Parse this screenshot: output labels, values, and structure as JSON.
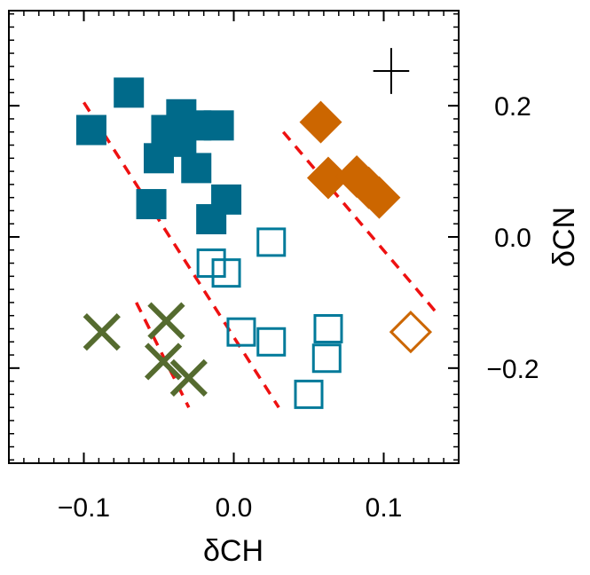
{
  "chart_data": {
    "type": "scatter",
    "xlabel": "δCH",
    "ylabel": "δCN",
    "xlim": [
      -0.15,
      0.15
    ],
    "ylim": [
      -0.345,
      0.345
    ],
    "x_ticks": [
      {
        "value": -0.1,
        "label": "−0.1"
      },
      {
        "value": 0.0,
        "label": "0.0"
      },
      {
        "value": 0.1,
        "label": "0.1"
      }
    ],
    "y_ticks": [
      {
        "value": 0.2,
        "label": "0.2"
      },
      {
        "value": 0.0,
        "label": "0.0"
      },
      {
        "value": -0.2,
        "label": "−0.2"
      }
    ],
    "y_axis_position": "right",
    "grid": false,
    "error_bar": {
      "x": 0.105,
      "y": 0.253,
      "dx": 0.012,
      "dy": 0.035,
      "color": "#000000"
    },
    "series": [
      {
        "marker": "filled-square",
        "color": "#006a8a",
        "points": [
          [
            -0.07,
            0.22
          ],
          [
            -0.095,
            0.163
          ],
          [
            -0.035,
            0.187
          ],
          [
            -0.045,
            0.163
          ],
          [
            -0.035,
            0.145
          ],
          [
            -0.025,
            0.17
          ],
          [
            -0.01,
            0.17
          ],
          [
            -0.05,
            0.12
          ],
          [
            -0.025,
            0.105
          ],
          [
            -0.055,
            0.05
          ],
          [
            -0.005,
            0.057
          ],
          [
            -0.015,
            0.027
          ]
        ]
      },
      {
        "marker": "open-square",
        "color": "#007a9a",
        "points": [
          [
            -0.015,
            -0.04
          ],
          [
            -0.005,
            -0.055
          ],
          [
            0.025,
            -0.008
          ],
          [
            0.005,
            -0.145
          ],
          [
            0.025,
            -0.16
          ],
          [
            0.063,
            -0.14
          ],
          [
            0.062,
            -0.185
          ],
          [
            0.05,
            -0.24
          ]
        ]
      },
      {
        "marker": "filled-diamond",
        "color": "#cc6600",
        "points": [
          [
            0.058,
            0.175
          ],
          [
            0.063,
            0.09
          ],
          [
            0.082,
            0.092
          ],
          [
            0.09,
            0.075
          ],
          [
            0.097,
            0.06
          ]
        ]
      },
      {
        "marker": "open-diamond",
        "color": "#cc6600",
        "points": [
          [
            0.118,
            -0.145
          ]
        ]
      },
      {
        "marker": "x",
        "color": "#556b2f",
        "points": [
          [
            -0.088,
            -0.145
          ],
          [
            -0.045,
            -0.128
          ],
          [
            -0.047,
            -0.19
          ],
          [
            -0.03,
            -0.215
          ]
        ]
      }
    ],
    "fit_lines": [
      {
        "color": "#ee1111",
        "style": "dashed",
        "x": [
          -0.1,
          0.03
        ],
        "y": [
          0.205,
          -0.26
        ]
      },
      {
        "color": "#ee1111",
        "style": "dashed",
        "x": [
          0.033,
          0.135
        ],
        "y": [
          0.16,
          -0.115
        ]
      },
      {
        "color": "#ee1111",
        "style": "dashed",
        "x": [
          -0.065,
          -0.03
        ],
        "y": [
          -0.1,
          -0.26
        ]
      }
    ]
  }
}
